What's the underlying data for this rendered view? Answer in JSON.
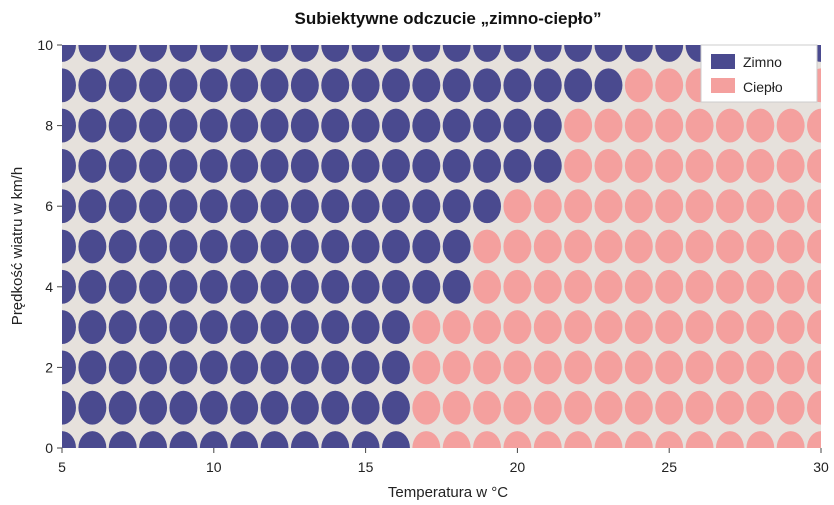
{
  "chart_data": {
    "type": "heatmap",
    "title": "Subiektywne odczucie „zimno-ciepło”",
    "xlabel": "Temperatura w °C",
    "ylabel": "Prędkość wiatru w km/h",
    "xlim": [
      5,
      30
    ],
    "ylim": [
      0,
      10
    ],
    "x_ticks": [
      "5",
      "10",
      "15",
      "20",
      "25",
      "30"
    ],
    "y_ticks": [
      "0",
      "2",
      "4",
      "6",
      "8",
      "10"
    ],
    "grid": false,
    "legend_position": "top-right",
    "background_color": "#e6e1dc",
    "categories": [
      {
        "name": "Zimno",
        "color": "#4a4a8f"
      },
      {
        "name": "Ciepło",
        "color": "#f4a09e"
      }
    ],
    "x_values": [
      5,
      6,
      7,
      8,
      9,
      10,
      11,
      12,
      13,
      14,
      15,
      16,
      17,
      18,
      19,
      20,
      21,
      22,
      23,
      24,
      25,
      26,
      27,
      28,
      29,
      30
    ],
    "y_values": [
      0,
      1,
      2,
      3,
      4,
      5,
      6,
      7,
      8,
      9,
      10
    ],
    "cold_up_to_temperature_by_wind": [
      16,
      16,
      16,
      16,
      18,
      18,
      19,
      21,
      21,
      23,
      30
    ]
  }
}
